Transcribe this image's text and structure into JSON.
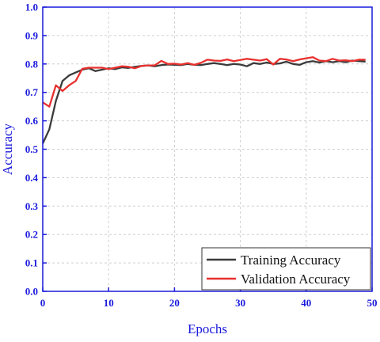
{
  "colors": {
    "axis": "#1a1adc",
    "grid": "#cfcfcf",
    "training": "#3b3b3b",
    "validation": "#e8302e"
  },
  "chart_data": {
    "type": "line",
    "xlabel": "Epochs",
    "ylabel": "Accuracy",
    "xlim": [
      0,
      50
    ],
    "ylim": [
      0.0,
      1.0
    ],
    "xticks": [
      "0",
      "10",
      "20",
      "30",
      "40",
      "50"
    ],
    "yticks": [
      "0.0",
      "0.1",
      "0.2",
      "0.3",
      "0.4",
      "0.5",
      "0.6",
      "0.7",
      "0.8",
      "0.9",
      "1.0"
    ],
    "grid": true,
    "legend_position": "bottom-right",
    "x": [
      0,
      1,
      2,
      3,
      4,
      5,
      6,
      7,
      8,
      9,
      10,
      11,
      12,
      13,
      14,
      15,
      16,
      17,
      18,
      19,
      20,
      21,
      22,
      23,
      24,
      25,
      26,
      27,
      28,
      29,
      30,
      31,
      32,
      33,
      34,
      35,
      36,
      37,
      38,
      39,
      40,
      41,
      42,
      43,
      44,
      45,
      46,
      47,
      48,
      49
    ],
    "series": [
      {
        "name": "Training Accuracy",
        "values": [
          0.52,
          0.57,
          0.67,
          0.74,
          0.76,
          0.77,
          0.78,
          0.785,
          0.775,
          0.78,
          0.785,
          0.782,
          0.788,
          0.786,
          0.79,
          0.793,
          0.795,
          0.792,
          0.796,
          0.798,
          0.797,
          0.796,
          0.8,
          0.797,
          0.796,
          0.8,
          0.803,
          0.8,
          0.796,
          0.8,
          0.798,
          0.792,
          0.803,
          0.8,
          0.805,
          0.8,
          0.802,
          0.808,
          0.8,
          0.797,
          0.806,
          0.81,
          0.805,
          0.81,
          0.806,
          0.81,
          0.806,
          0.812,
          0.81,
          0.808
        ]
      },
      {
        "name": "Validation Accuracy",
        "values": [
          0.665,
          0.65,
          0.725,
          0.705,
          0.725,
          0.74,
          0.783,
          0.787,
          0.787,
          0.787,
          0.782,
          0.787,
          0.792,
          0.79,
          0.785,
          0.793,
          0.795,
          0.795,
          0.811,
          0.8,
          0.801,
          0.798,
          0.803,
          0.797,
          0.804,
          0.815,
          0.812,
          0.811,
          0.816,
          0.81,
          0.814,
          0.818,
          0.815,
          0.812,
          0.817,
          0.798,
          0.818,
          0.816,
          0.81,
          0.816,
          0.82,
          0.824,
          0.812,
          0.81,
          0.818,
          0.812,
          0.813,
          0.81,
          0.815,
          0.815
        ]
      }
    ]
  }
}
